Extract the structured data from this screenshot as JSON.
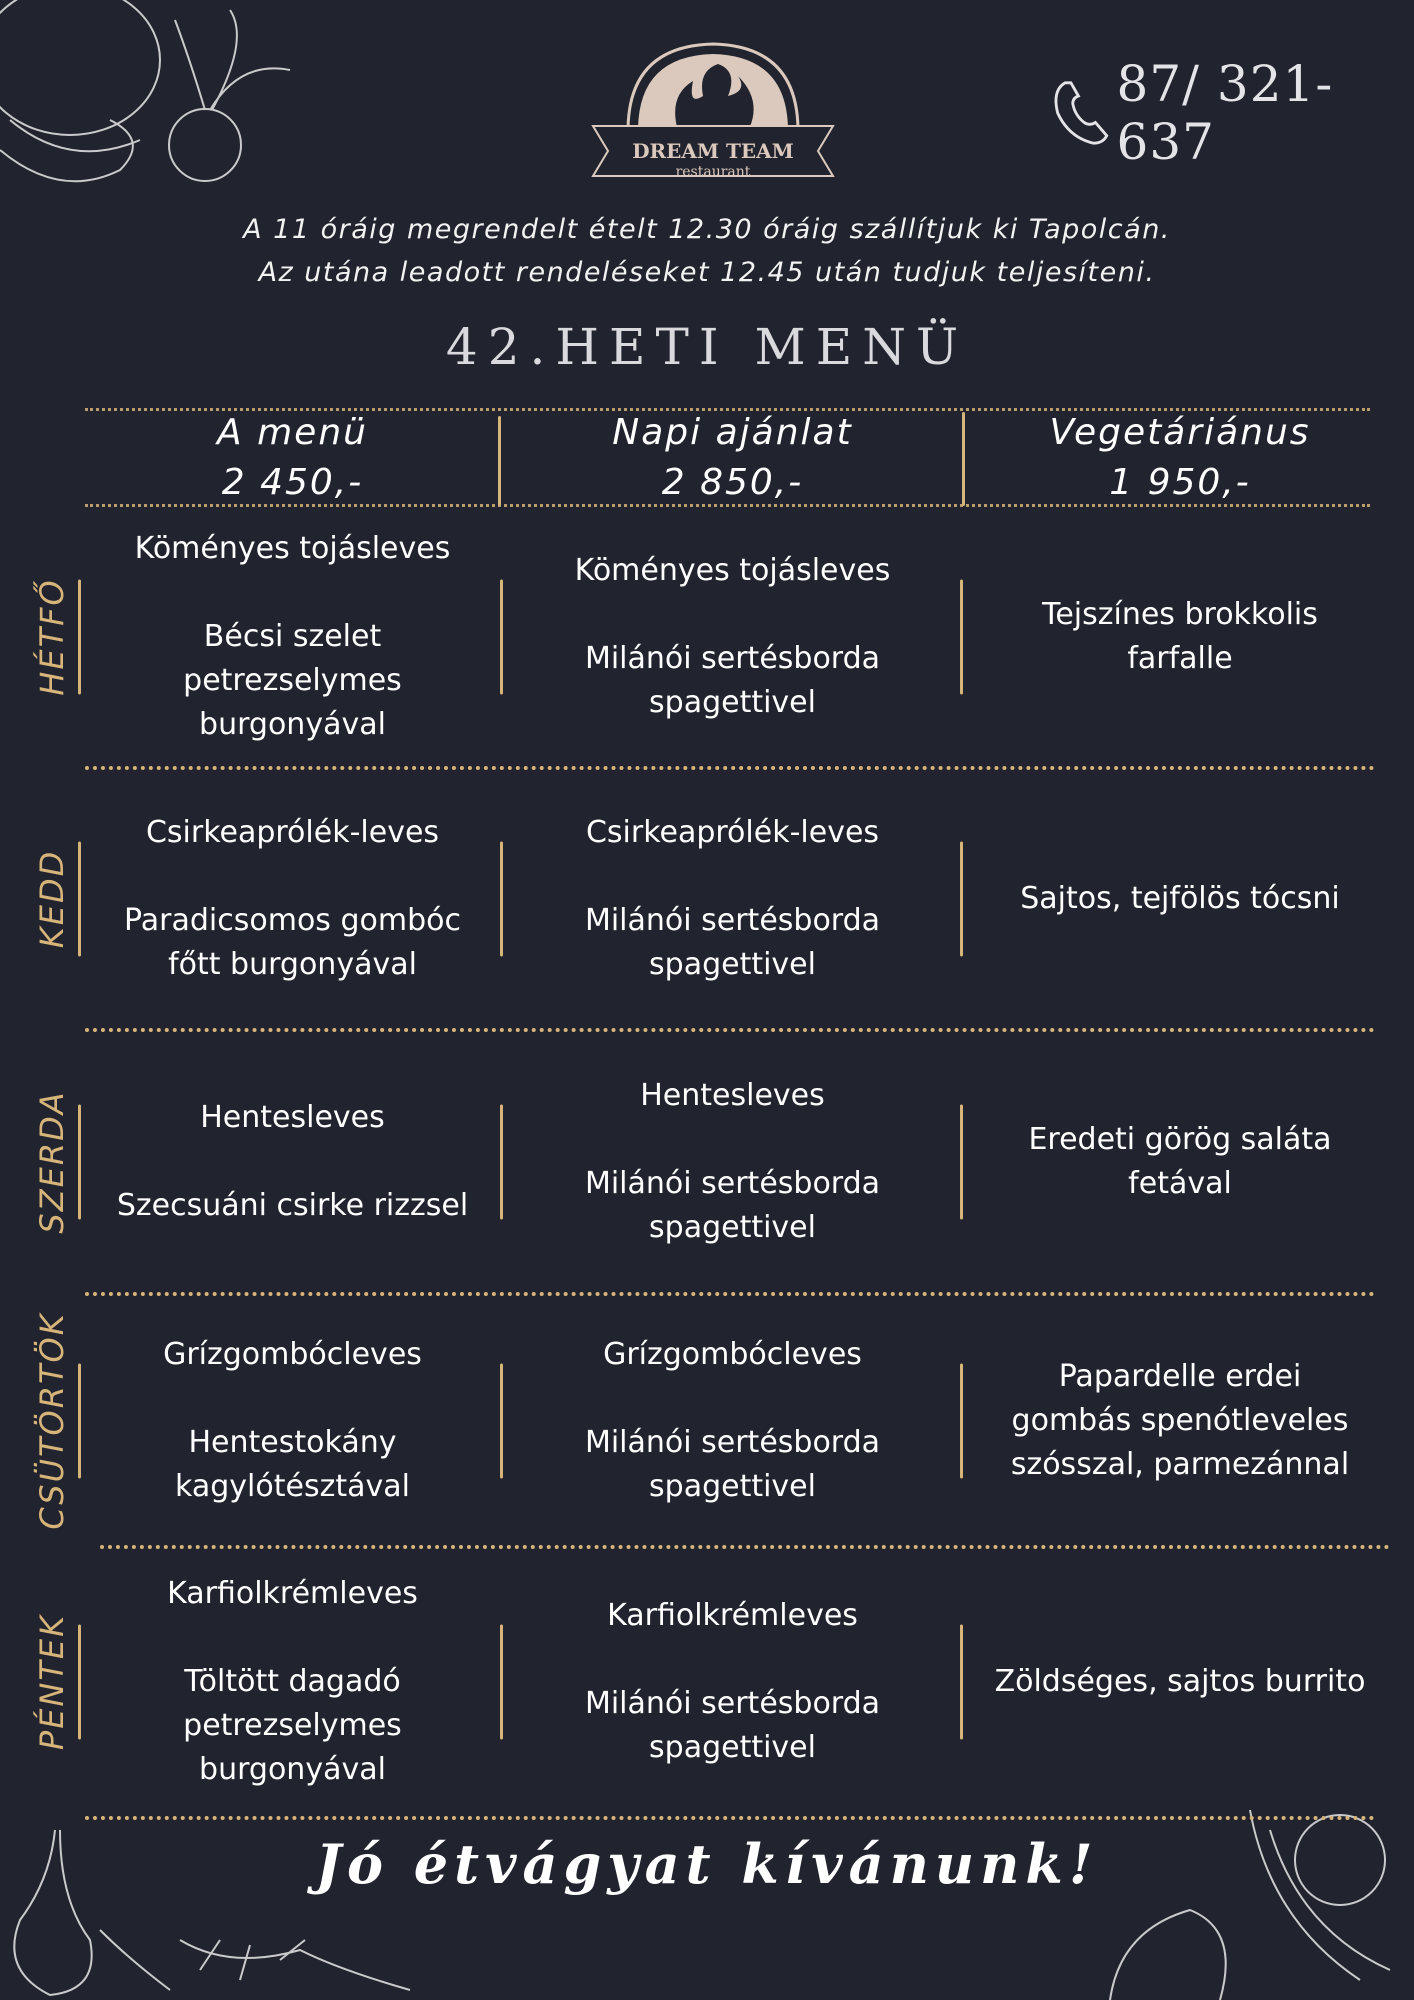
{
  "logo": {
    "name": "DREAM TEAM",
    "sub": "restaurant"
  },
  "phone": {
    "icon": "phone-icon",
    "number": "87/ 321-637"
  },
  "notice": [
    "A 11 óráig megrendelt ételt 12.30 óráig szállítjuk ki Tapolcán.",
    "Az utána leadott rendeléseket 12.45  után tudjuk teljesíteni."
  ],
  "title": "42.HETI MENÜ",
  "columns": [
    {
      "name": "A menü",
      "price": "2 450,-"
    },
    {
      "name": "Napi ajánlat",
      "price": "2 850,-"
    },
    {
      "name": "Vegetáriánus",
      "price": "1 950,-"
    }
  ],
  "days": [
    {
      "day": "HÉTFŐ",
      "a": {
        "soup": "Köményes tojásleves",
        "main": [
          "Bécsi szelet",
          "petrezselymes",
          "burgonyával"
        ]
      },
      "b": {
        "soup": "Köményes tojásleves",
        "main": [
          "Milánói sertésborda",
          "spagettivel"
        ]
      },
      "veg": [
        "Tejszínes brokkolis",
        "farfalle"
      ]
    },
    {
      "day": "KEDD",
      "a": {
        "soup": "Csirkeaprólék-leves",
        "main": [
          "Paradicsomos gombóc",
          "főtt burgonyával"
        ]
      },
      "b": {
        "soup": "Csirkeaprólék-leves",
        "main": [
          "Milánói sertésborda",
          "spagettivel"
        ]
      },
      "veg": [
        "Sajtos, tejfölös tócsni"
      ]
    },
    {
      "day": "SZERDA",
      "a": {
        "soup": "Hentesleves",
        "main": [
          "Szecsuáni csirke rizzsel"
        ]
      },
      "b": {
        "soup": "Hentesleves",
        "main": [
          "Milánói sertésborda",
          "spagettivel"
        ]
      },
      "veg": [
        "Eredeti görög saláta",
        "fetával"
      ]
    },
    {
      "day": "CSÜTÖRTÖK",
      "a": {
        "soup": "Grízgombócleves",
        "main": [
          "Hentestokány",
          "kagylótésztával"
        ]
      },
      "b": {
        "soup": "Grízgombócleves",
        "main": [
          "Milánói sertésborda",
          "spagettivel"
        ]
      },
      "veg": [
        "Papardelle erdei",
        "gombás spenótleveles",
        "szósszal, parmezánnal"
      ]
    },
    {
      "day": "PÉNTEK",
      "a": {
        "soup": "Karfiolkrémleves",
        "main": [
          "Töltött dagadó",
          "petrezselymes",
          "burgonyával"
        ]
      },
      "b": {
        "soup": "Karfiolkrémleves",
        "main": [
          "Milánói sertésborda",
          "spagettivel"
        ]
      },
      "veg": [
        "Zöldséges, sajtos burrito"
      ]
    }
  ],
  "footer": "Jó étvágyat kívánunk!",
  "colors": {
    "background": "#21242e",
    "accent": "#d6b47a",
    "text": "#ffffff",
    "logo_fill": "#dcc9bd"
  }
}
